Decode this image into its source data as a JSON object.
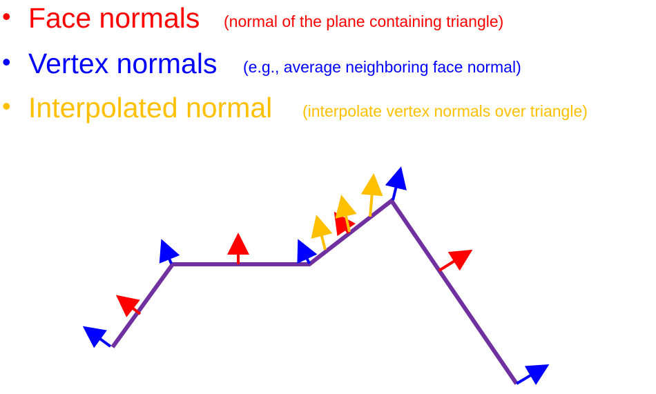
{
  "bullets": [
    {
      "id": "face",
      "symbol": "•",
      "title": "Face normals",
      "note": "(normal of the plane containing triangle)",
      "color": "#ff0000"
    },
    {
      "id": "vertex",
      "symbol": "•",
      "title": "Vertex normals",
      "note": "(e.g., average neighboring face normal)",
      "color": "#0000ff"
    },
    {
      "id": "interp",
      "symbol": "•",
      "title": "Interpolated normal",
      "note": "(interpolate vertex normals over triangle)",
      "color": "#ffc000"
    }
  ],
  "diagram": {
    "surface_color": "#7030a0",
    "face_normal_color": "#ff0000",
    "vertex_normal_color": "#0000ff",
    "interpolated_normal_color": "#ffc000"
  }
}
